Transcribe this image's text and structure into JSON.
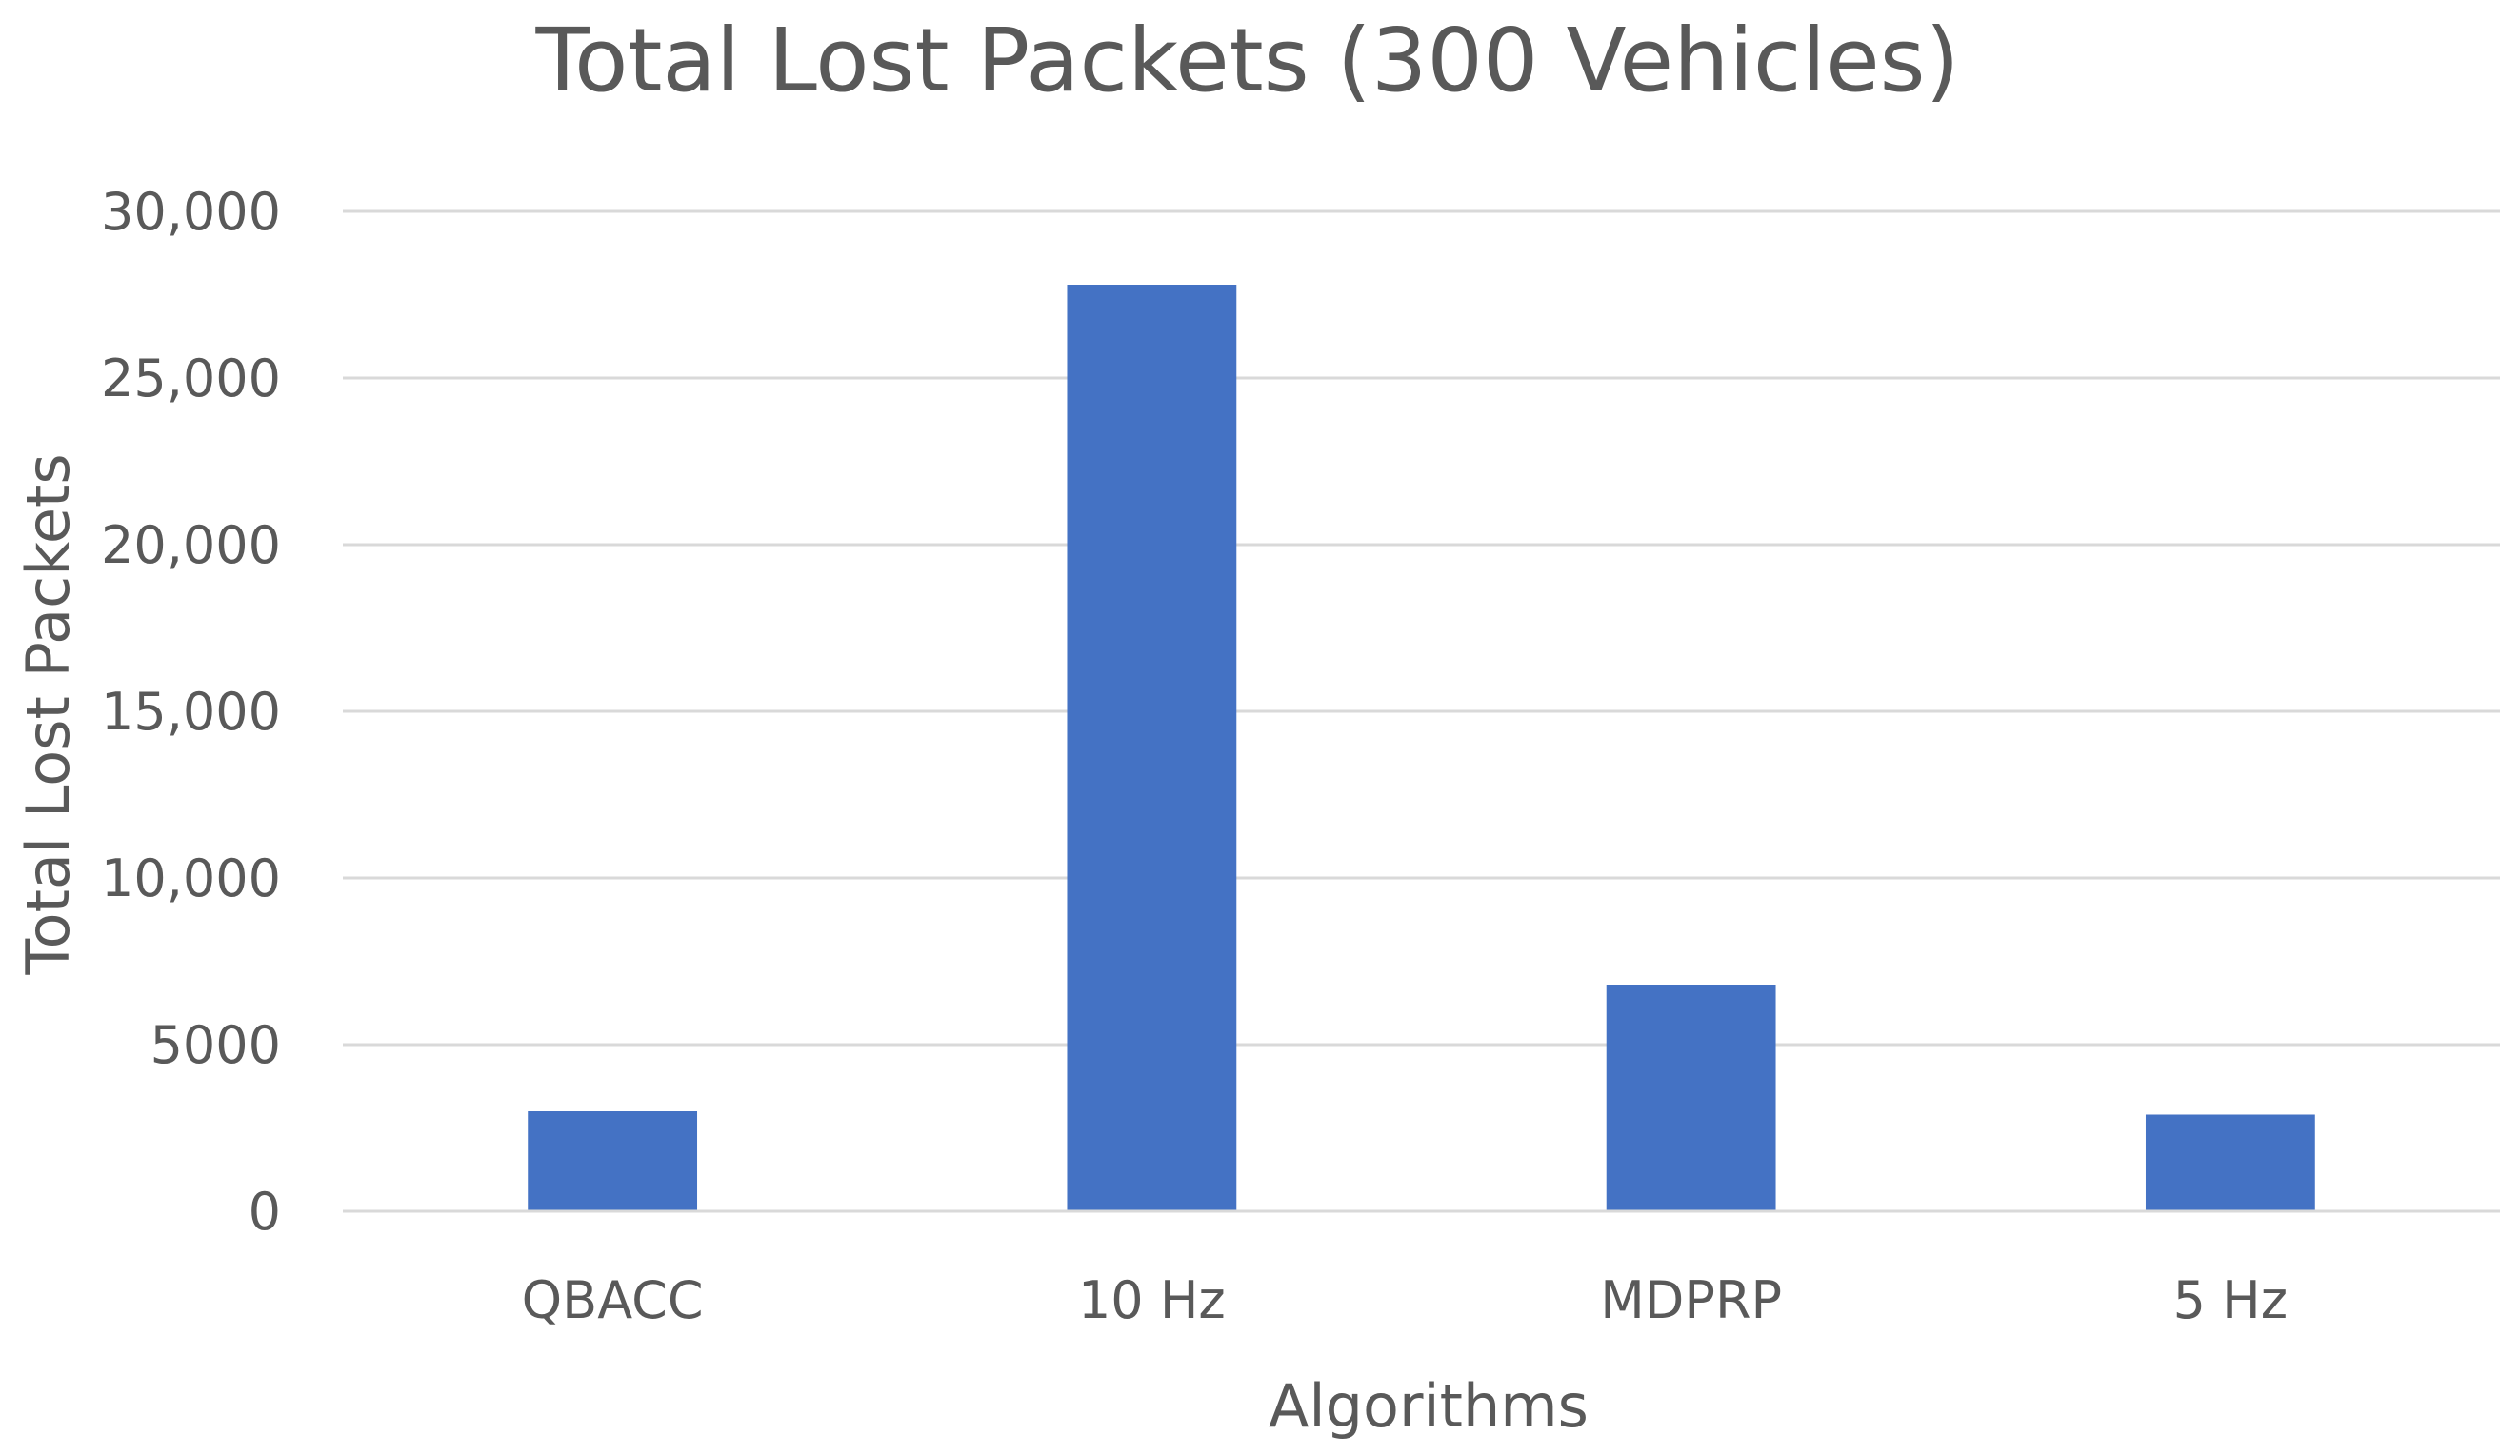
{
  "chart_data": {
    "type": "bar",
    "title": "Total Lost Packets (300 Vehicles)",
    "xlabel": "Algorithms",
    "ylabel": "Total Lost Packets",
    "categories": [
      "QBACC",
      "10 Hz",
      "MDPRP",
      "5 Hz"
    ],
    "values": [
      3000,
      27800,
      6800,
      2900
    ],
    "ylim": [
      0,
      30000
    ],
    "yticks": [
      0,
      5000,
      10000,
      15000,
      20000,
      25000,
      30000
    ],
    "ytick_labels": [
      "0",
      "5000",
      "10,000",
      "15,000",
      "20,000",
      "25,000",
      "30,000"
    ],
    "grid": true,
    "legend": "none",
    "bar_color": "#4472C4"
  }
}
